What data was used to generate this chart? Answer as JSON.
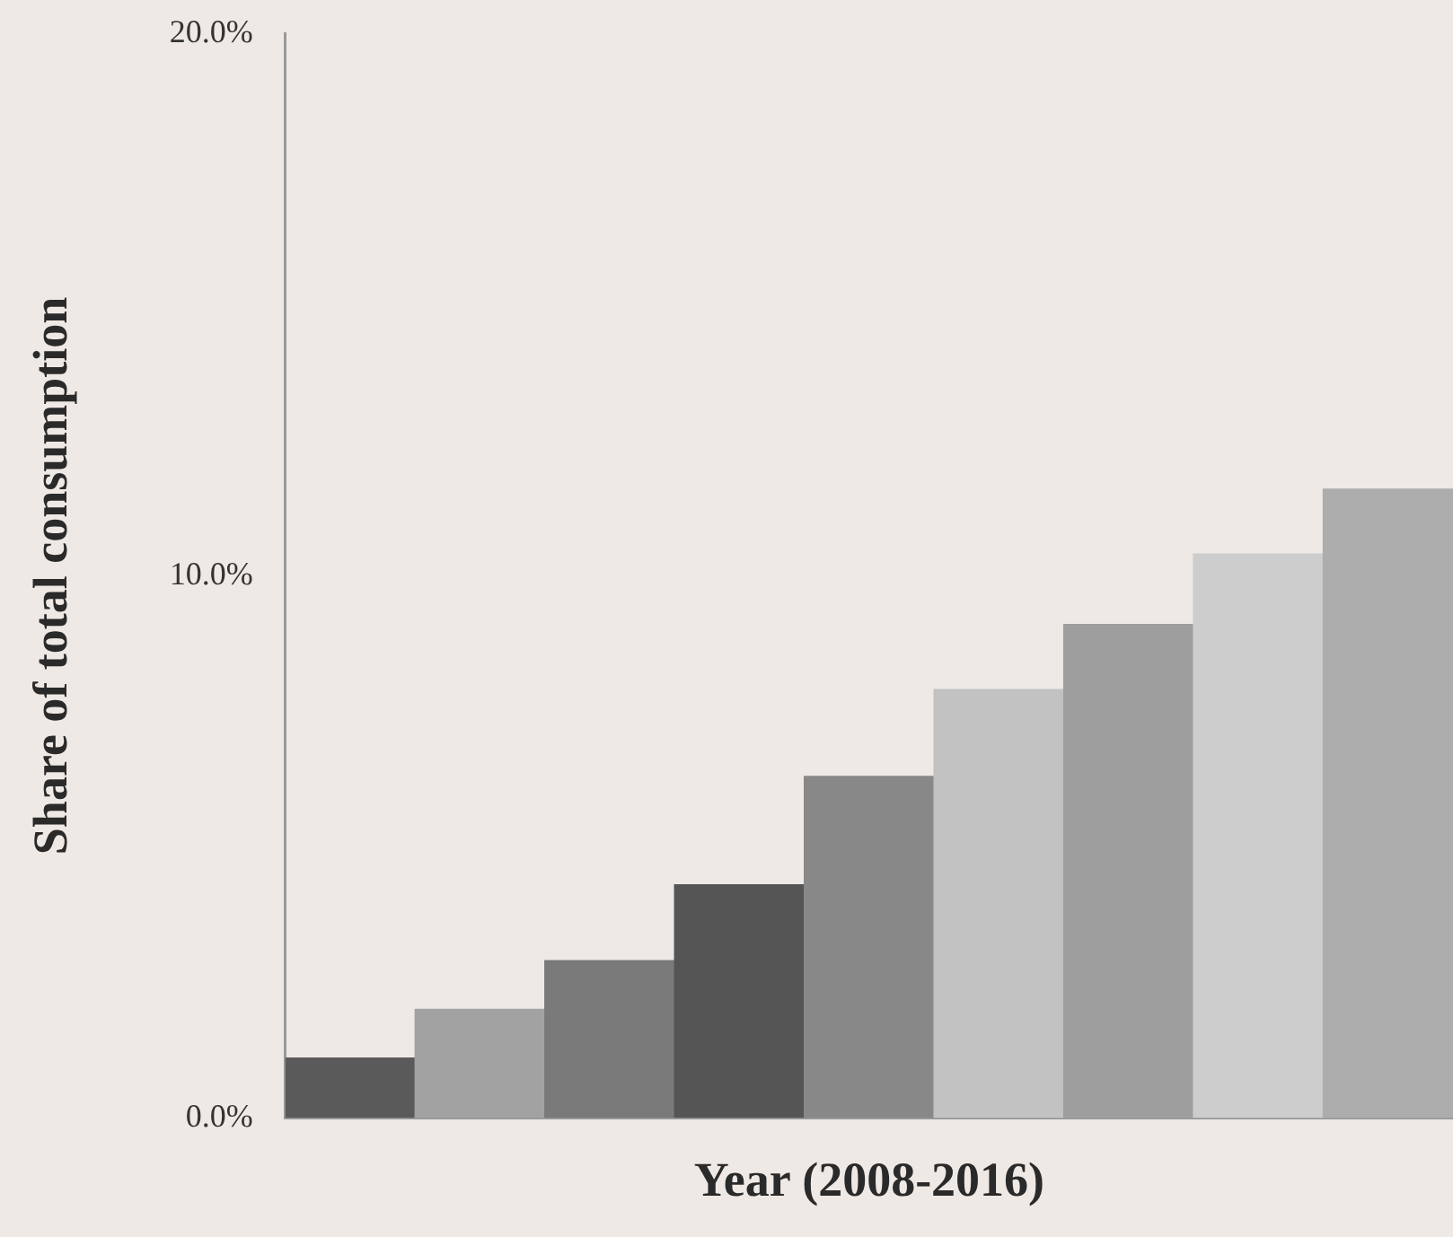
{
  "chart_data": {
    "type": "bar",
    "xlabel": "Year (2008-2016)",
    "ylabel": "Share of total consumption",
    "categories": [
      null,
      null,
      null,
      null,
      null,
      null,
      null,
      null,
      null
    ],
    "values": [
      1.1,
      2.0,
      2.9,
      4.3,
      6.3,
      7.9,
      9.1,
      10.4,
      11.6
    ],
    "colors": [
      "#5a5a5a",
      "#a2a2a2",
      "#7a7a7a",
      "#555555",
      "#888888",
      "#c2c2c2",
      "#9e9e9e",
      "#cdcdcd",
      "#adadad"
    ],
    "ylim": [
      0,
      20
    ],
    "yticks": [
      {
        "value": 0,
        "label": "0.0%"
      },
      {
        "value": 10,
        "label": "10.0%"
      },
      {
        "value": 20,
        "label": "20.0%"
      }
    ],
    "tick_labels": "y",
    "grid": false,
    "legend": false
  }
}
